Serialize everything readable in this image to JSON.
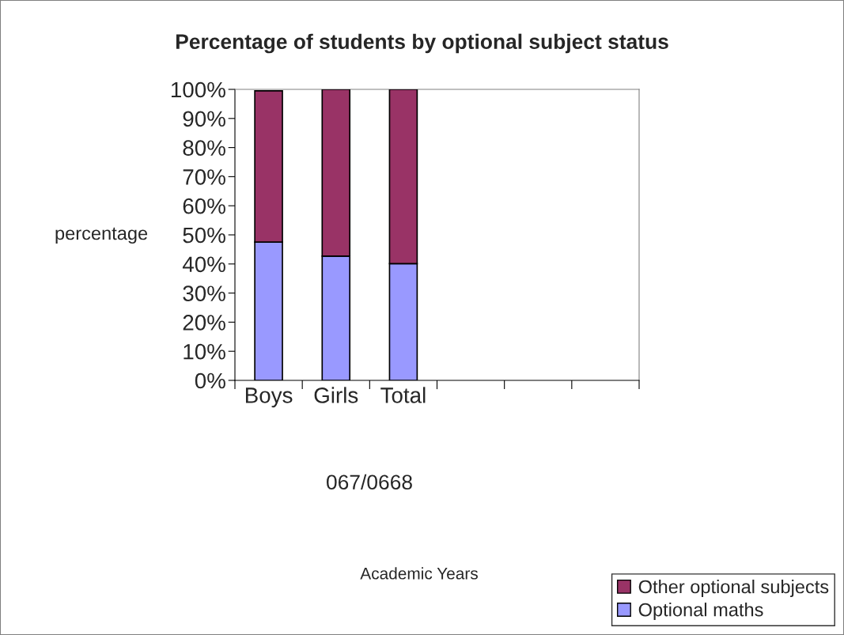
{
  "chart_data": {
    "type": "bar",
    "title": "Percentage of students by optional subject status",
    "ylabel": "percentage",
    "annotations": [
      "067/0668",
      "Academic Years"
    ],
    "categories": [
      "Boys",
      "Girls",
      "Total",
      null,
      null,
      null
    ],
    "stacked": true,
    "series": [
      {
        "name": "Optional maths",
        "color": "#9999ff",
        "values": [
          47.5,
          42.7,
          40.1,
          null,
          null,
          null
        ]
      },
      {
        "name": "Other optional subjects",
        "color": "#993366",
        "values": [
          52.0,
          57.3,
          59.9,
          null,
          null,
          null
        ]
      }
    ],
    "ylim": [
      0,
      100
    ],
    "yticks": [
      {
        "value": 0,
        "label": "0%"
      },
      {
        "value": 10,
        "label": "10%"
      },
      {
        "value": 20,
        "label": "20%"
      },
      {
        "value": 30,
        "label": "30%"
      },
      {
        "value": 40,
        "label": "40%"
      },
      {
        "value": 50,
        "label": "50%"
      },
      {
        "value": 60,
        "label": "60%"
      },
      {
        "value": 70,
        "label": "70%"
      },
      {
        "value": 80,
        "label": "80%"
      },
      {
        "value": 90,
        "label": "90%"
      },
      {
        "value": 100,
        "label": "100%"
      }
    ],
    "grid": false,
    "legend": "bottom right"
  }
}
